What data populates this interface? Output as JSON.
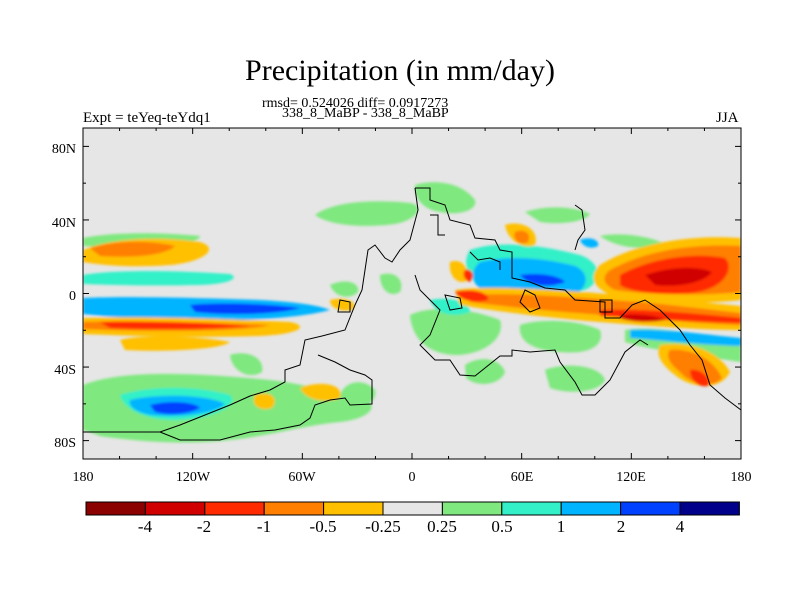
{
  "title": "Precipitation (in mm/day)",
  "stats": "rmsd= 0.524026 diff= 0.0917273",
  "periods": "338_8_MaBP - 338_8_MaBP",
  "expt": "Expt = teYeq-teYdq1",
  "season": "JJA",
  "axes": {
    "lat_ticks": [
      "80N",
      "40N",
      "0",
      "40S",
      "80S"
    ],
    "lon_ticks": [
      "180",
      "120W",
      "60W",
      "0",
      "60E",
      "120E",
      "180"
    ]
  },
  "colorbar": {
    "labels": [
      "-4",
      "-2",
      "-1",
      "-0.5",
      "-0.25",
      "0.25",
      "0.5",
      "1",
      "2",
      "4"
    ],
    "colors": [
      "#8b0000",
      "#d10000",
      "#ff2a00",
      "#ff7f00",
      "#ffc000",
      "#e6e6e6",
      "#7fe87f",
      "#33f0c8",
      "#00b4ff",
      "#0040ff",
      "#00008b"
    ]
  },
  "colors": {
    "background": "#e6e6e6",
    "coast": "#000000"
  }
}
